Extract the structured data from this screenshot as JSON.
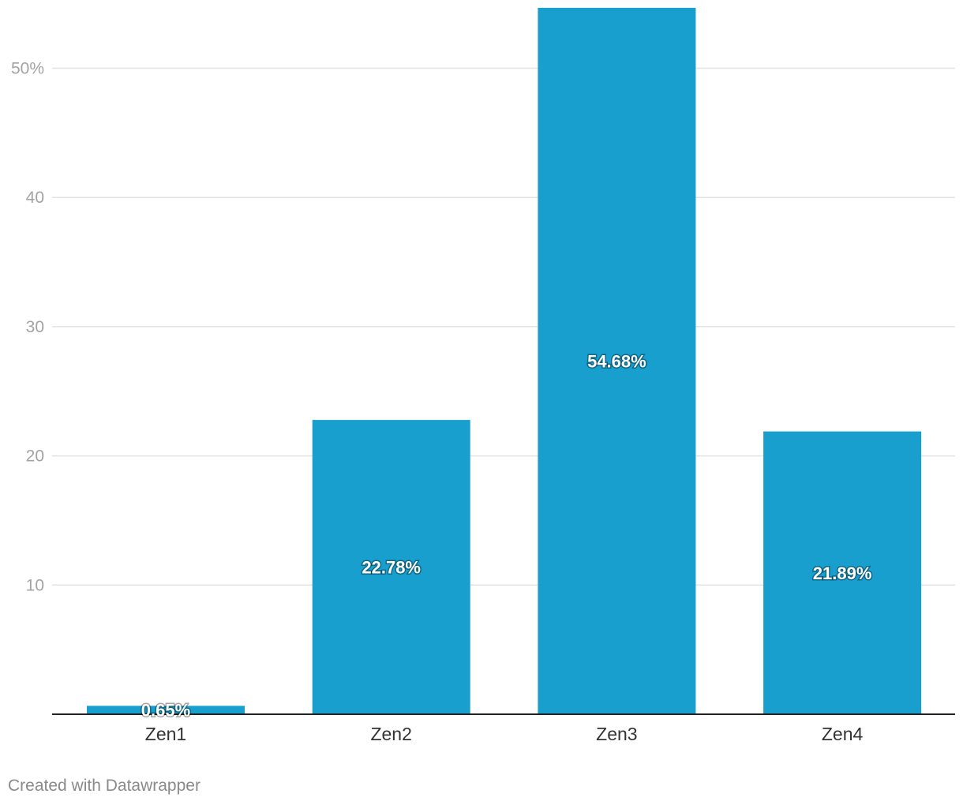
{
  "chart_data": {
    "type": "bar",
    "categories": [
      "Zen1",
      "Zen2",
      "Zen3",
      "Zen4"
    ],
    "values": [
      0.65,
      22.78,
      54.68,
      21.89
    ],
    "value_labels": [
      "0.65%",
      "22.78%",
      "54.68%",
      "21.89%"
    ],
    "ylim": [
      0,
      55
    ],
    "yticks": [
      10,
      20,
      30,
      40,
      50
    ],
    "ytick_labels": [
      "10",
      "20",
      "30",
      "40",
      "50%"
    ],
    "grid": true,
    "bar_color": "#189fcd"
  },
  "footer": {
    "credit": "Created with Datawrapper"
  }
}
